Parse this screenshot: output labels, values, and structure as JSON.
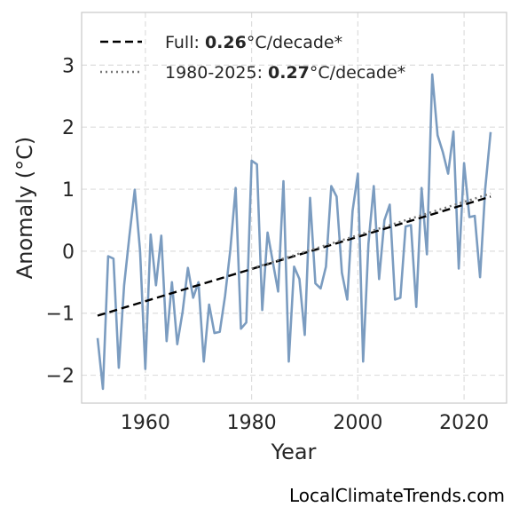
{
  "chart_data": {
    "type": "line",
    "xlabel": "Year",
    "ylabel": "Anomaly (°C)",
    "xlim": [
      1948,
      2028
    ],
    "ylim": [
      -2.45,
      3.85
    ],
    "x_ticks": [
      1960,
      1980,
      2000,
      2020
    ],
    "y_ticks": [
      -2,
      -1,
      0,
      1,
      2,
      3
    ],
    "y_tick_labels": [
      "−2",
      "−1",
      "0",
      "1",
      "2",
      "3"
    ],
    "grid": true,
    "legend_placement": "top-left",
    "colors": {
      "series": "#7b9cc0",
      "trend_full": "#000000",
      "trend_recent": "#777777",
      "grid": "#dddddd",
      "frame": "#cccccc"
    },
    "series": [
      {
        "x": [
          1951,
          1952,
          1953,
          1954,
          1955,
          1956,
          1957,
          1958,
          1959,
          1960,
          1961,
          1962,
          1963,
          1964,
          1965,
          1966,
          1967,
          1968,
          1969,
          1970,
          1971,
          1972,
          1973,
          1974,
          1975,
          1976,
          1977,
          1978,
          1979,
          1980,
          1981,
          1982,
          1983,
          1984,
          1985,
          1986,
          1987,
          1988,
          1989,
          1990,
          1991,
          1992,
          1993,
          1994,
          1995,
          1996,
          1997,
          1998,
          1999,
          2000,
          2001,
          2002,
          2003,
          2004,
          2005,
          2006,
          2007,
          2008,
          2009,
          2010,
          2011,
          2012,
          2013,
          2014,
          2015,
          2016,
          2017,
          2018,
          2019,
          2020,
          2021,
          2022,
          2023,
          2024,
          2025
        ],
        "y": [
          -1.4,
          -2.22,
          -0.08,
          -0.12,
          -1.88,
          -0.55,
          0.25,
          0.99,
          0.0,
          -1.9,
          0.27,
          -0.55,
          0.25,
          -1.45,
          -0.5,
          -1.5,
          -0.98,
          -0.27,
          -0.75,
          -0.5,
          -1.78,
          -0.86,
          -1.32,
          -1.3,
          -0.72,
          0.02,
          1.02,
          -1.25,
          -1.15,
          1.46,
          1.4,
          -0.95,
          0.3,
          -0.18,
          -0.65,
          1.13,
          -1.78,
          -0.25,
          -0.45,
          -1.35,
          0.86,
          -0.52,
          -0.6,
          -0.25,
          1.05,
          0.88,
          -0.35,
          -0.78,
          0.65,
          1.25,
          -1.78,
          0.12,
          1.05,
          -0.45,
          0.5,
          0.75,
          -0.78,
          -0.75,
          0.4,
          0.42,
          -0.9,
          1.02,
          -0.05,
          2.85,
          1.87,
          1.6,
          1.25,
          1.93,
          -0.28,
          1.42,
          0.55,
          0.57,
          -0.42,
          1.02,
          1.92
        ]
      }
    ],
    "trend_full": {
      "x": [
        1951,
        2025
      ],
      "y": [
        -1.04,
        0.88
      ]
    },
    "trend_recent": {
      "x": [
        1980,
        2025
      ],
      "y": [
        -0.28,
        0.93
      ]
    },
    "legend": [
      {
        "style": "dashed",
        "prefix": "Full: ",
        "value": "0.26",
        "suffix": "°C/decade*"
      },
      {
        "style": "dotted",
        "prefix": "1980-2025: ",
        "value": "0.27",
        "suffix": "°C/decade*"
      }
    ]
  },
  "credit": "LocalClimateTrends.com"
}
